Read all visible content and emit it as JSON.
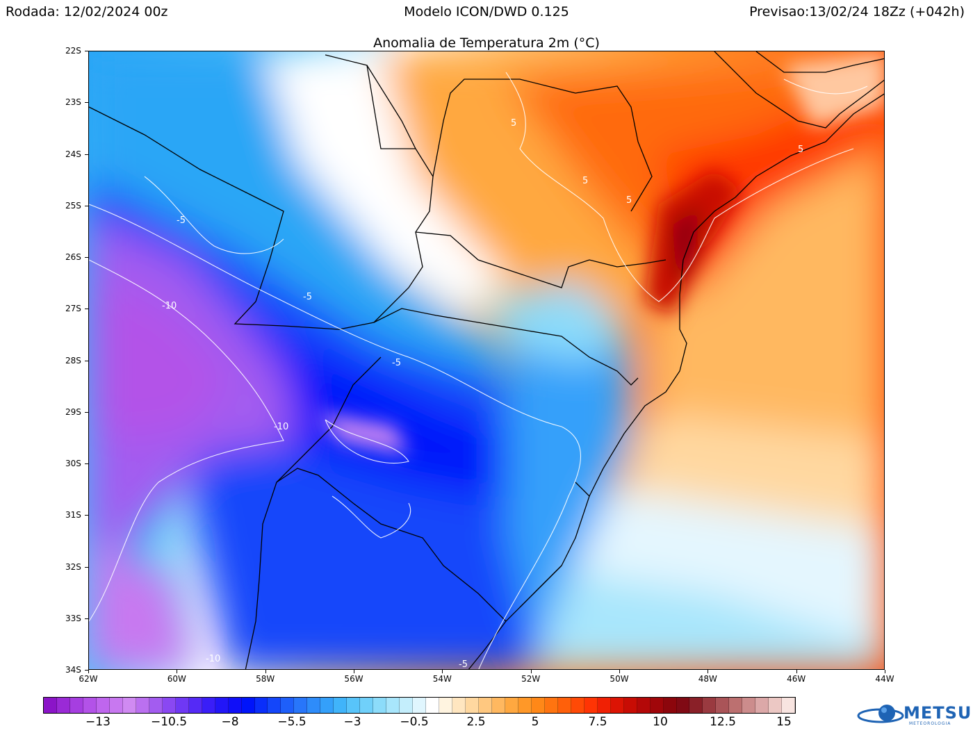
{
  "header": {
    "run": "Rodada: 12/02/2024 00z",
    "model": "Modelo ICON/DWD 0.125",
    "forecast": "Previsao:13/02/24 18Zz (+042h)"
  },
  "map": {
    "title": "Anomalia de Temperatura 2m (°C)",
    "lat_ticks": [
      "22S",
      "23S",
      "24S",
      "25S",
      "26S",
      "27S",
      "28S",
      "29S",
      "30S",
      "31S",
      "32S",
      "33S",
      "34S"
    ],
    "lon_ticks": [
      "62W",
      "60W",
      "58W",
      "56W",
      "54W",
      "52W",
      "50W",
      "48W",
      "46W",
      "44W"
    ],
    "contour_labels": {
      "pos": "5",
      "neg5": "-5",
      "neg10": "-10"
    }
  },
  "colorbar": {
    "labels": [
      "-13",
      "-10.5",
      "-8",
      "-5.5",
      "-3",
      "-0.5",
      "2.5",
      "5",
      "7.5",
      "10",
      "12.5",
      "15"
    ],
    "colors": [
      "#8b14c8",
      "#9a2ad6",
      "#a63ee0",
      "#b352e8",
      "#bf66ee",
      "#c878f0",
      "#d08af2",
      "#bb70f0",
      "#a35cf0",
      "#8a48f2",
      "#6f38f4",
      "#552af6",
      "#3a1ef8",
      "#2216f8",
      "#100ff8",
      "#0014fa",
      "#0a2efa",
      "#1446fa",
      "#1e5ffa",
      "#2876fa",
      "#2e8cfa",
      "#34a0fa",
      "#40b4fa",
      "#58c4fa",
      "#70d0fa",
      "#8cdcfa",
      "#a8e6fc",
      "#c4eefc",
      "#e0f6fe",
      "#ffffff",
      "#fff4e0",
      "#ffe6c0",
      "#ffd8a0",
      "#ffc880",
      "#ffb860",
      "#ffa840",
      "#ff9828",
      "#ff8818",
      "#ff7410",
      "#ff600a",
      "#ff4a06",
      "#ff3404",
      "#f02004",
      "#dc1404",
      "#c80c04",
      "#b40808",
      "#a0060a",
      "#8c060c",
      "#800a14",
      "#8a2028",
      "#9a3a40",
      "#aa5458",
      "#bc7070",
      "#cc8c8c",
      "#dca8a8",
      "#ecc8c4",
      "#f8e4e0"
    ],
    "colorbar_label_positions": [
      141,
      243,
      331,
      420,
      507,
      596,
      685,
      770,
      860,
      950,
      1040,
      1128
    ]
  },
  "logo": {
    "name": "METSUL",
    "sub": "METEOROLOGIA"
  }
}
